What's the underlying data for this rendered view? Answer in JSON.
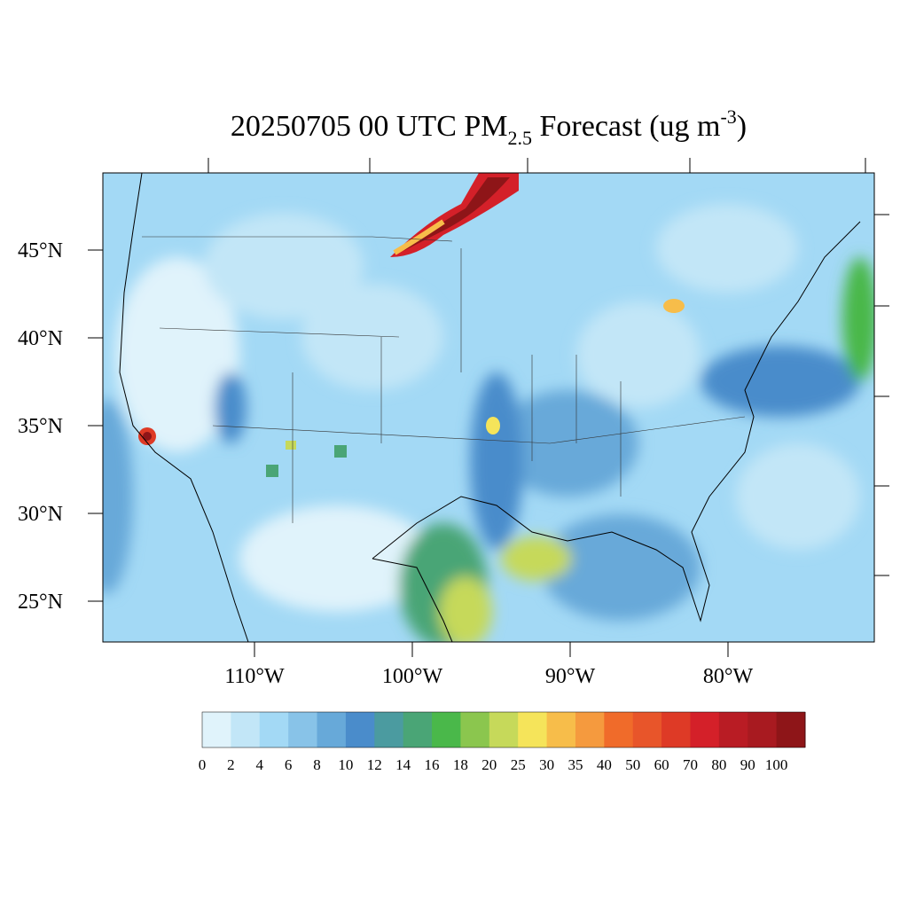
{
  "map": {
    "title": {
      "prefix": "20250705 00 UTC PM",
      "subscript": "2.5",
      "middle": " Forecast (ug m",
      "superscript": "-3",
      "suffix": ")"
    },
    "lat_ticks": [
      {
        "value": 45,
        "label": "45°N"
      },
      {
        "value": 40,
        "label": "40°N"
      },
      {
        "value": 35,
        "label": "35°N"
      },
      {
        "value": 30,
        "label": "30°N"
      },
      {
        "value": 25,
        "label": "25°N"
      }
    ],
    "lon_ticks": [
      {
        "value": -110,
        "label": "110°W"
      },
      {
        "value": -100,
        "label": "100°W"
      },
      {
        "value": -90,
        "label": "90°W"
      },
      {
        "value": -80,
        "label": "80°W"
      }
    ],
    "colorbar": {
      "levels": [
        0,
        2,
        4,
        6,
        8,
        10,
        12,
        14,
        16,
        18,
        20,
        25,
        30,
        35,
        40,
        50,
        60,
        70,
        80,
        90,
        100
      ],
      "colors": [
        "#e0f3fb",
        "#c2e6f7",
        "#a3d9f5",
        "#88c3e8",
        "#67a9d9",
        "#4a8ccb",
        "#4b9ba0",
        "#4aa576",
        "#4ab84a",
        "#8bc64e",
        "#c6d95a",
        "#f5e45a",
        "#f7bd4a",
        "#f59a3e",
        "#f06b2a",
        "#e8552a",
        "#de3a26",
        "#d42029",
        "#b91c24",
        "#a81a20",
        "#8e1518"
      ]
    }
  }
}
